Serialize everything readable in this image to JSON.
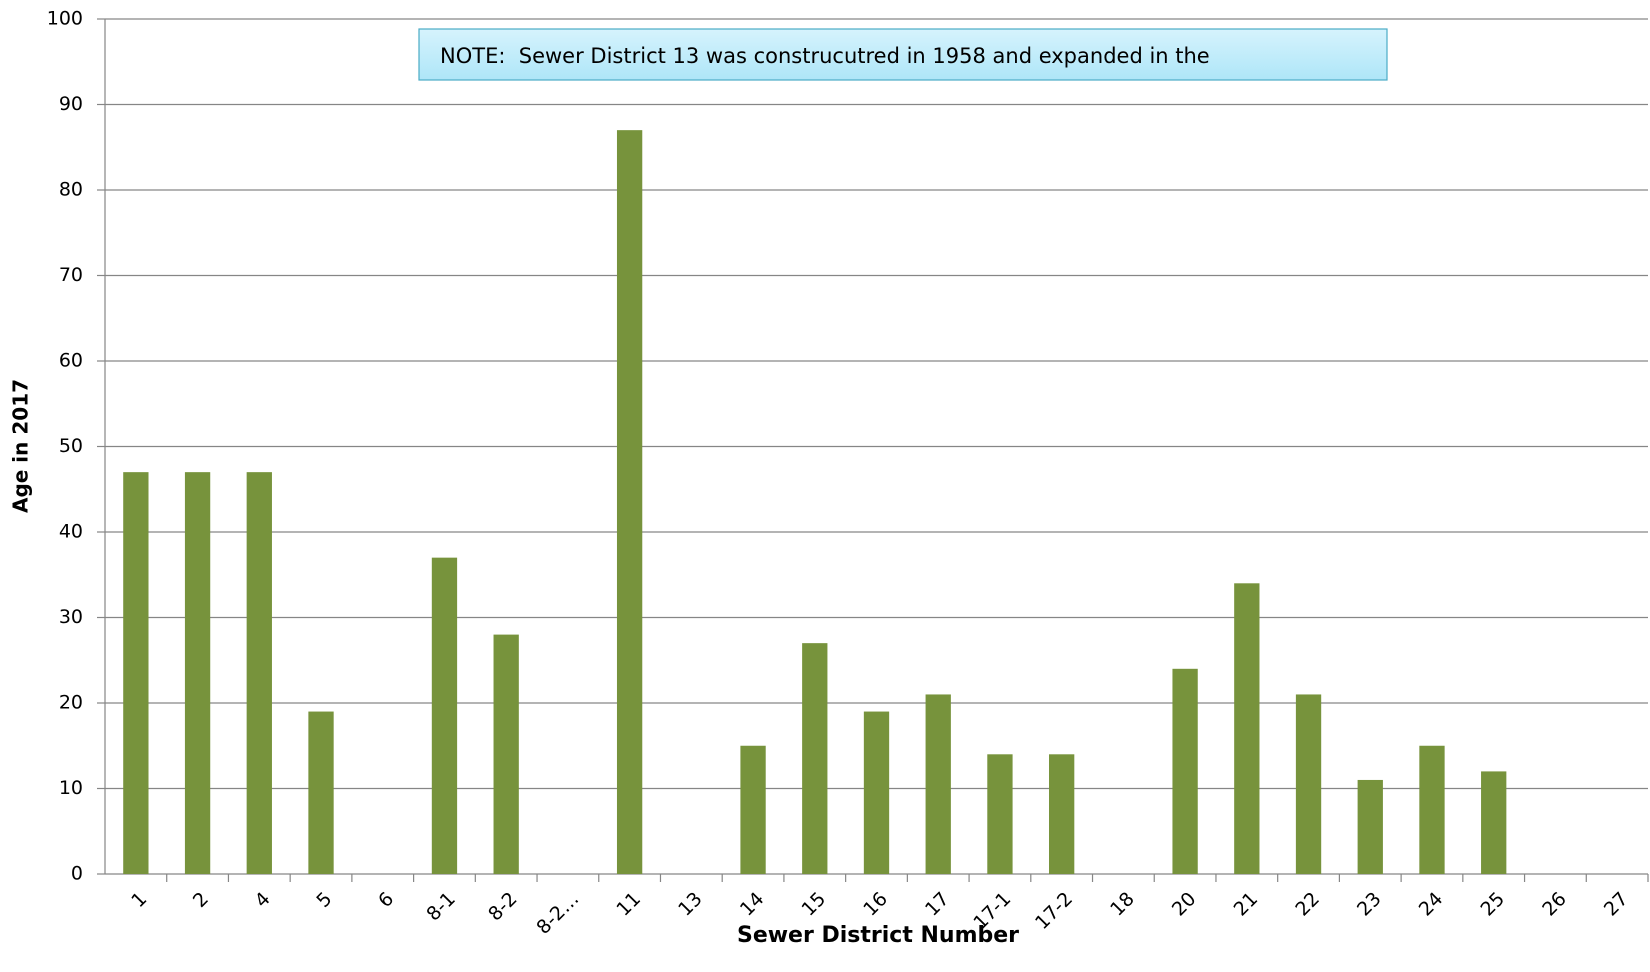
{
  "chart_data": {
    "type": "bar",
    "categories": [
      "1",
      "2",
      "4",
      "5",
      "6",
      "8-1",
      "8-2",
      "8-2…",
      "11",
      "13",
      "14",
      "15",
      "16",
      "17",
      "17-1",
      "17-2",
      "18",
      "20",
      "21",
      "22",
      "23",
      "24",
      "25",
      "26",
      "27"
    ],
    "values": [
      47,
      47,
      47,
      19,
      null,
      37,
      28,
      null,
      87,
      null,
      15,
      27,
      19,
      21,
      14,
      14,
      null,
      24,
      34,
      21,
      11,
      15,
      12,
      null,
      null
    ],
    "color": "#77933c",
    "x_label": "Sewer District Number",
    "y_label": "Age in 2017",
    "annotation": "NOTE:  Sewer District 13 was construcutred in 1958 and expanded in the",
    "ylim": [
      0,
      100
    ],
    "yticks": [
      0,
      10,
      20,
      30,
      40,
      50,
      60,
      70,
      80,
      90,
      100
    ],
    "grid": true
  }
}
